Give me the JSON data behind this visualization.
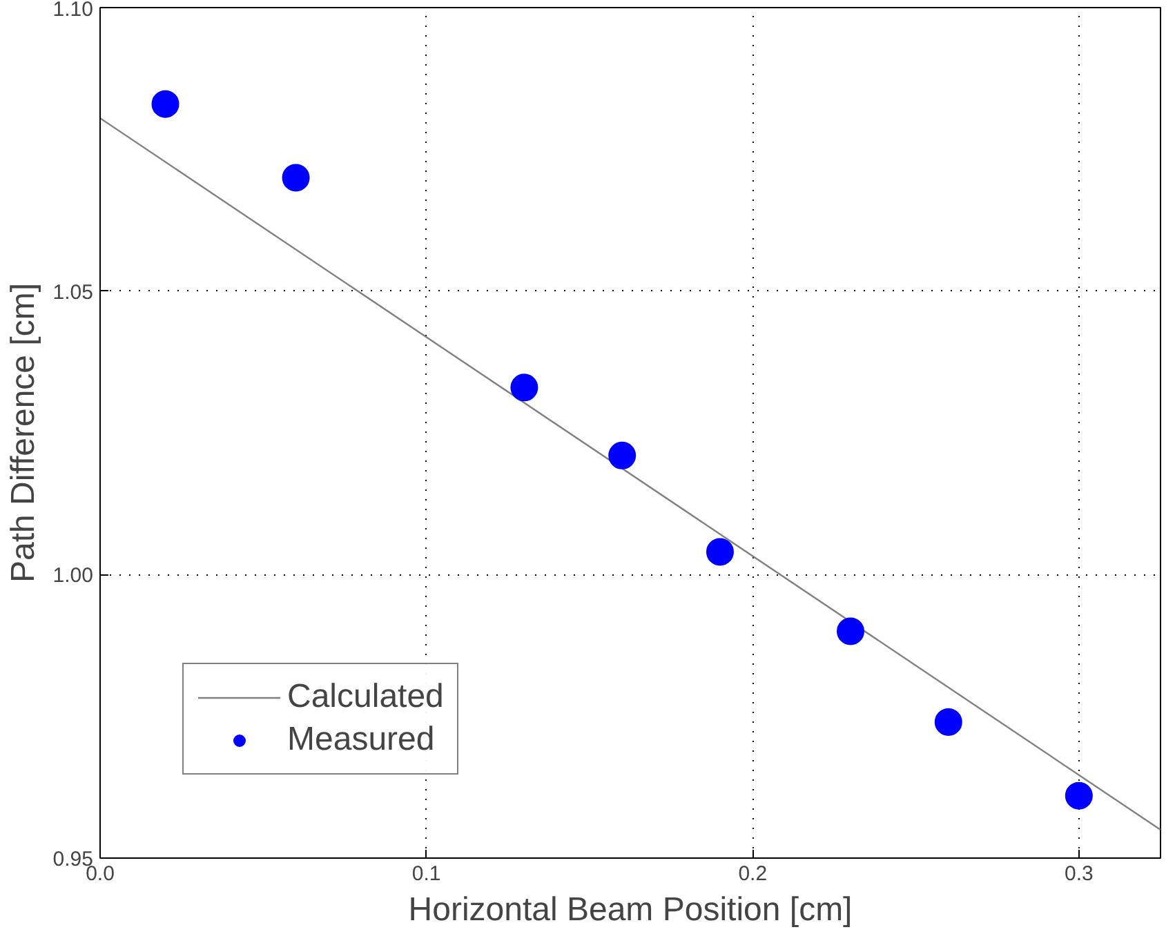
{
  "chart_data": {
    "type": "scatter",
    "xlabel": "Horizontal Beam Position [cm]",
    "ylabel": "Path Difference [cm]",
    "xlim": [
      0,
      0.325
    ],
    "ylim": [
      0.95,
      1.1
    ],
    "xticks": [
      {
        "value": 0,
        "label": "0.0"
      },
      {
        "value": 0.1,
        "label": "0.1"
      },
      {
        "value": 0.2,
        "label": "0.2"
      },
      {
        "value": 0.3,
        "label": "0.3"
      }
    ],
    "yticks": [
      {
        "value": 0.95,
        "label": "0.95"
      },
      {
        "value": 1.0,
        "label": "1.00"
      },
      {
        "value": 1.05,
        "label": "1.05"
      },
      {
        "value": 1.1,
        "label": "1.10"
      }
    ],
    "grid": true,
    "legend": "bottom left",
    "series": [
      {
        "name": "Calculated",
        "type": "line",
        "color": "#808080",
        "x": [
          0,
          0.325
        ],
        "values": [
          1.0805,
          0.955
        ],
        "line_style": "solid"
      },
      {
        "name": "Measured",
        "color": "#0000ff",
        "marker": "circle",
        "x": [
          0.02,
          0.06,
          0.13,
          0.16,
          0.19,
          0.23,
          0.26,
          0.3
        ],
        "values": [
          1.083,
          1.07,
          1.033,
          1.021,
          1.004,
          0.99,
          0.974,
          0.961
        ]
      }
    ]
  }
}
